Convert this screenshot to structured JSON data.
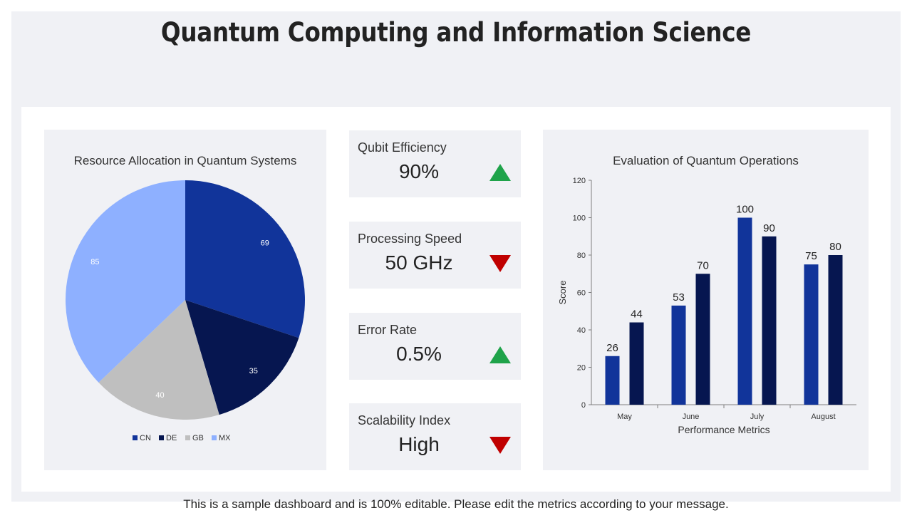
{
  "header": {
    "title": "Quantum Computing and Information Science"
  },
  "footer": {
    "note": "This is a sample dashboard and is 100% editable. Please edit the metrics according to your message."
  },
  "kpis": [
    {
      "label": "Qubit Efficiency",
      "value": "90%",
      "trend": "up"
    },
    {
      "label": "Processing Speed",
      "value": "50 GHz",
      "trend": "down"
    },
    {
      "label": "Error Rate",
      "value": "0.5%",
      "trend": "up"
    },
    {
      "label": "Scalability Index",
      "value": "High",
      "trend": "down"
    }
  ],
  "colors": {
    "up": "#1fa34a",
    "down": "#c00000"
  },
  "chart_data": [
    {
      "type": "pie",
      "title": "Resource Allocation in Quantum Systems",
      "categories": [
        "CN",
        "DE",
        "GB",
        "MX"
      ],
      "values": [
        69,
        35,
        40,
        85
      ],
      "colors": [
        "#11349a",
        "#061650",
        "#bfbfbf",
        "#8eb0ff"
      ],
      "legend": "bottom"
    },
    {
      "type": "bar",
      "title": "Evaluation of Quantum Operations",
      "categories": [
        "May",
        "June",
        "July",
        "August"
      ],
      "series": [
        {
          "values": [
            26,
            53,
            100,
            75
          ],
          "color": "#11349a"
        },
        {
          "values": [
            44,
            70,
            90,
            80
          ],
          "color": "#061650"
        }
      ],
      "xlabel": "Performance Metrics",
      "ylabel": "Score",
      "ylim": [
        0,
        120
      ],
      "yticks": [
        0,
        20,
        40,
        60,
        80,
        100,
        120
      ],
      "grid": false
    }
  ]
}
